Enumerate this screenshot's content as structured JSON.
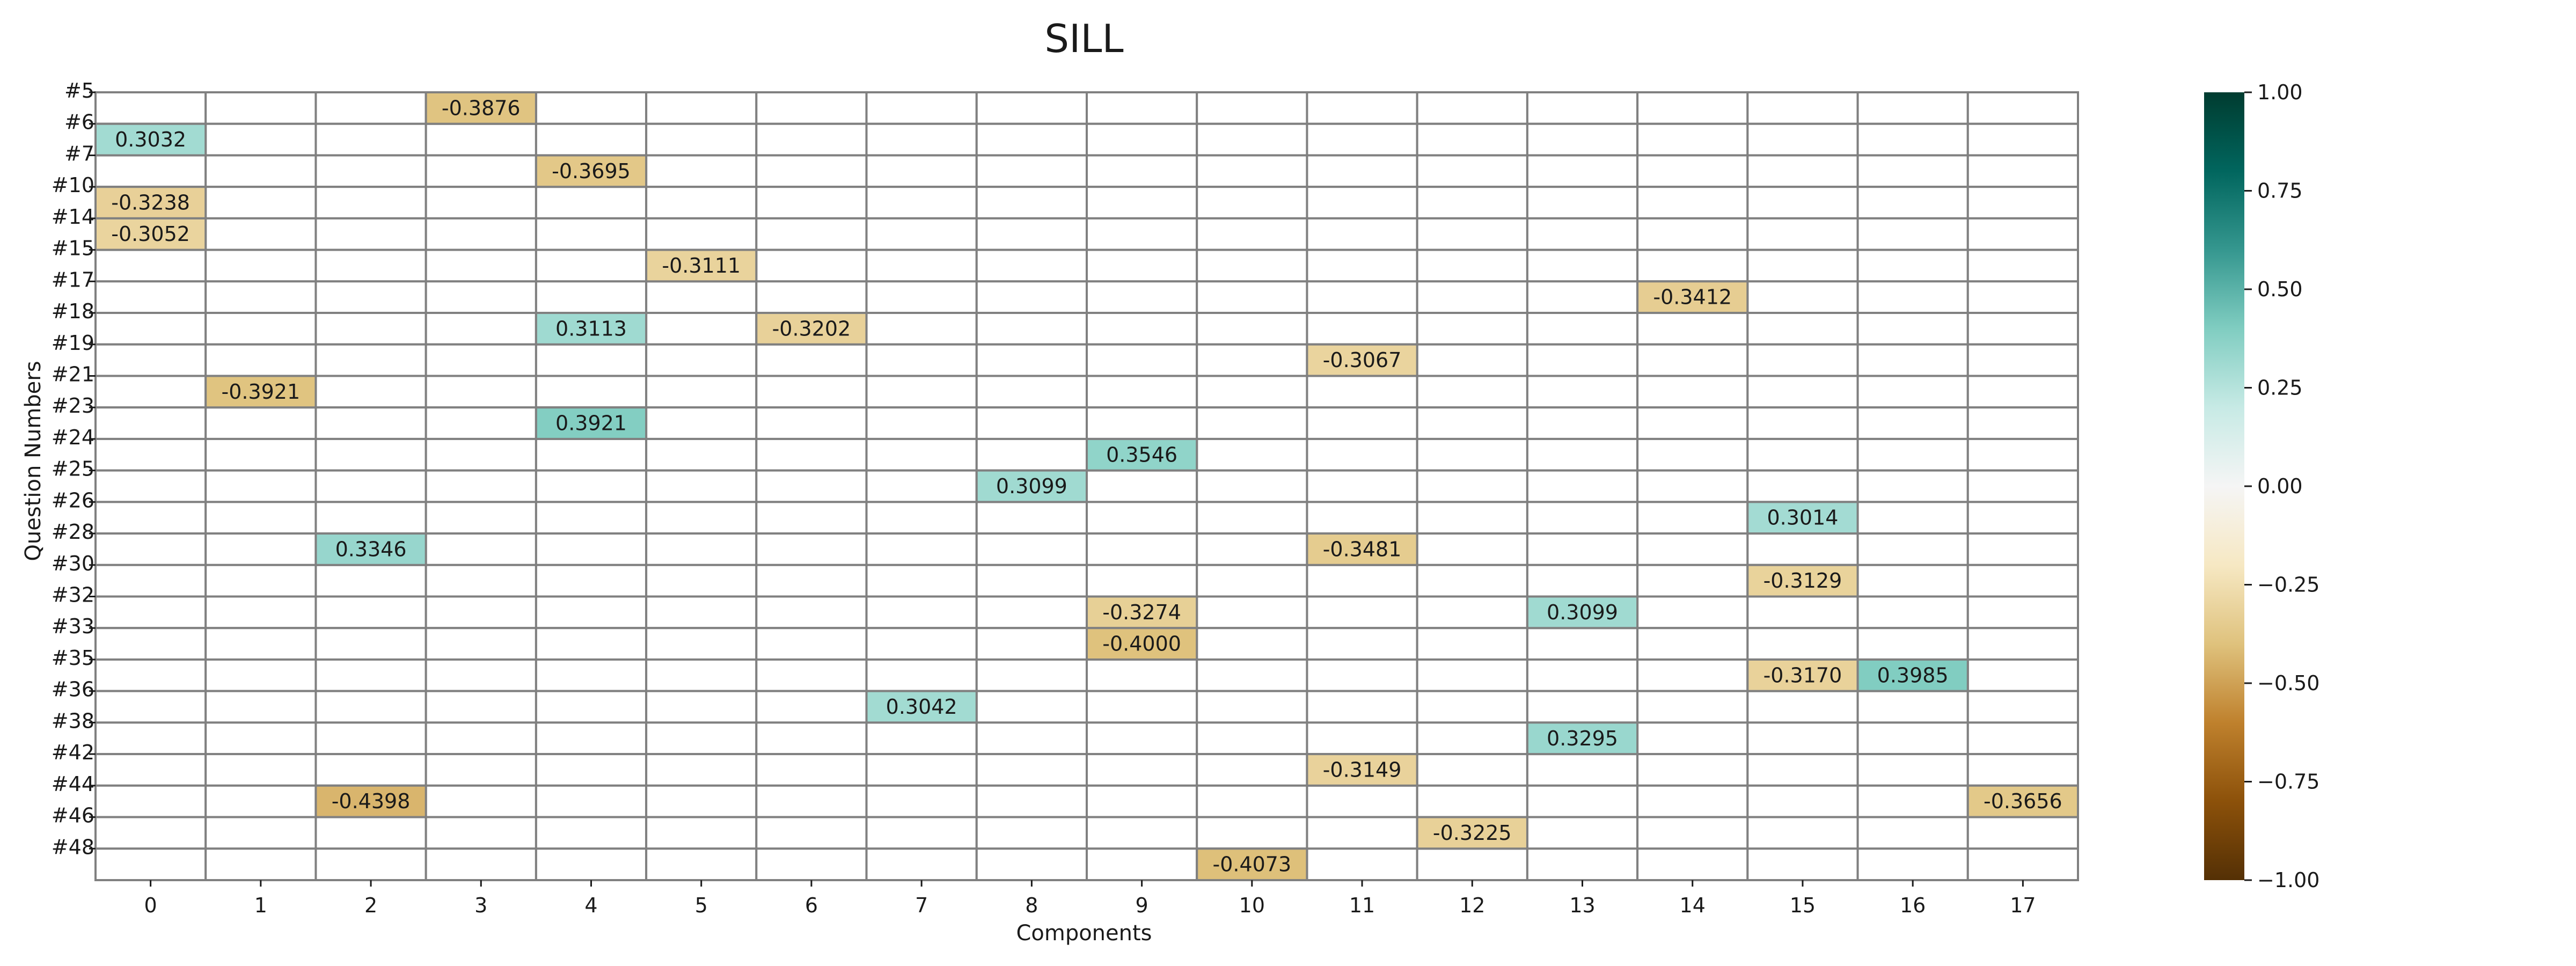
{
  "chart_data": {
    "type": "heatmap",
    "title": "SILL",
    "xlabel": "Components",
    "ylabel": "Question Numbers",
    "x_categories": [
      "0",
      "1",
      "2",
      "3",
      "4",
      "5",
      "6",
      "7",
      "8",
      "9",
      "10",
      "11",
      "12",
      "13",
      "14",
      "15",
      "16",
      "17"
    ],
    "y_categories": [
      "#5",
      "#6",
      "#7",
      "#10",
      "#14",
      "#15",
      "#17",
      "#18",
      "#19",
      "#21",
      "#23",
      "#24",
      "#25",
      "#26",
      "#28",
      "#30",
      "#32",
      "#33",
      "#35",
      "#36",
      "#38",
      "#42",
      "#44",
      "#46",
      "#48"
    ],
    "cells": [
      {
        "row": "#5",
        "col": "3",
        "value": -0.3876
      },
      {
        "row": "#6",
        "col": "0",
        "value": 0.3032
      },
      {
        "row": "#7",
        "col": "4",
        "value": -0.3695
      },
      {
        "row": "#10",
        "col": "0",
        "value": -0.3238
      },
      {
        "row": "#14",
        "col": "0",
        "value": -0.3052
      },
      {
        "row": "#15",
        "col": "5",
        "value": -0.3111
      },
      {
        "row": "#17",
        "col": "14",
        "value": -0.3412
      },
      {
        "row": "#18",
        "col": "4",
        "value": 0.3113
      },
      {
        "row": "#18",
        "col": "6",
        "value": -0.3202
      },
      {
        "row": "#19",
        "col": "11",
        "value": -0.3067
      },
      {
        "row": "#21",
        "col": "1",
        "value": -0.3921
      },
      {
        "row": "#23",
        "col": "4",
        "value": 0.3921
      },
      {
        "row": "#24",
        "col": "9",
        "value": 0.3546
      },
      {
        "row": "#25",
        "col": "8",
        "value": 0.3099
      },
      {
        "row": "#26",
        "col": "15",
        "value": 0.3014
      },
      {
        "row": "#28",
        "col": "2",
        "value": 0.3346
      },
      {
        "row": "#28",
        "col": "11",
        "value": -0.3481
      },
      {
        "row": "#30",
        "col": "15",
        "value": -0.3129
      },
      {
        "row": "#32",
        "col": "9",
        "value": -0.3274
      },
      {
        "row": "#32",
        "col": "13",
        "value": 0.3099
      },
      {
        "row": "#33",
        "col": "9",
        "value": -0.4
      },
      {
        "row": "#35",
        "col": "15",
        "value": -0.317
      },
      {
        "row": "#35",
        "col": "16",
        "value": 0.3985
      },
      {
        "row": "#36",
        "col": "7",
        "value": 0.3042
      },
      {
        "row": "#38",
        "col": "13",
        "value": 0.3295
      },
      {
        "row": "#42",
        "col": "11",
        "value": -0.3149
      },
      {
        "row": "#44",
        "col": "2",
        "value": -0.4398
      },
      {
        "row": "#44",
        "col": "17",
        "value": -0.3656
      },
      {
        "row": "#46",
        "col": "12",
        "value": -0.3225
      },
      {
        "row": "#48",
        "col": "10",
        "value": -0.4073
      }
    ],
    "value_format_decimals": 4,
    "colormap": "BrBG",
    "vmin": -1.0,
    "vmax": 1.0,
    "colorbar_ticks": [
      1.0,
      0.75,
      0.5,
      0.25,
      0.0,
      -0.25,
      -0.5,
      -0.75,
      -1.0
    ],
    "colorbar_tick_labels": [
      "1.00",
      "0.75",
      "0.50",
      "0.25",
      "0.00",
      "−0.25",
      "−0.50",
      "−0.75",
      "−1.00"
    ],
    "grid": true,
    "colorbar_placement": "right"
  }
}
